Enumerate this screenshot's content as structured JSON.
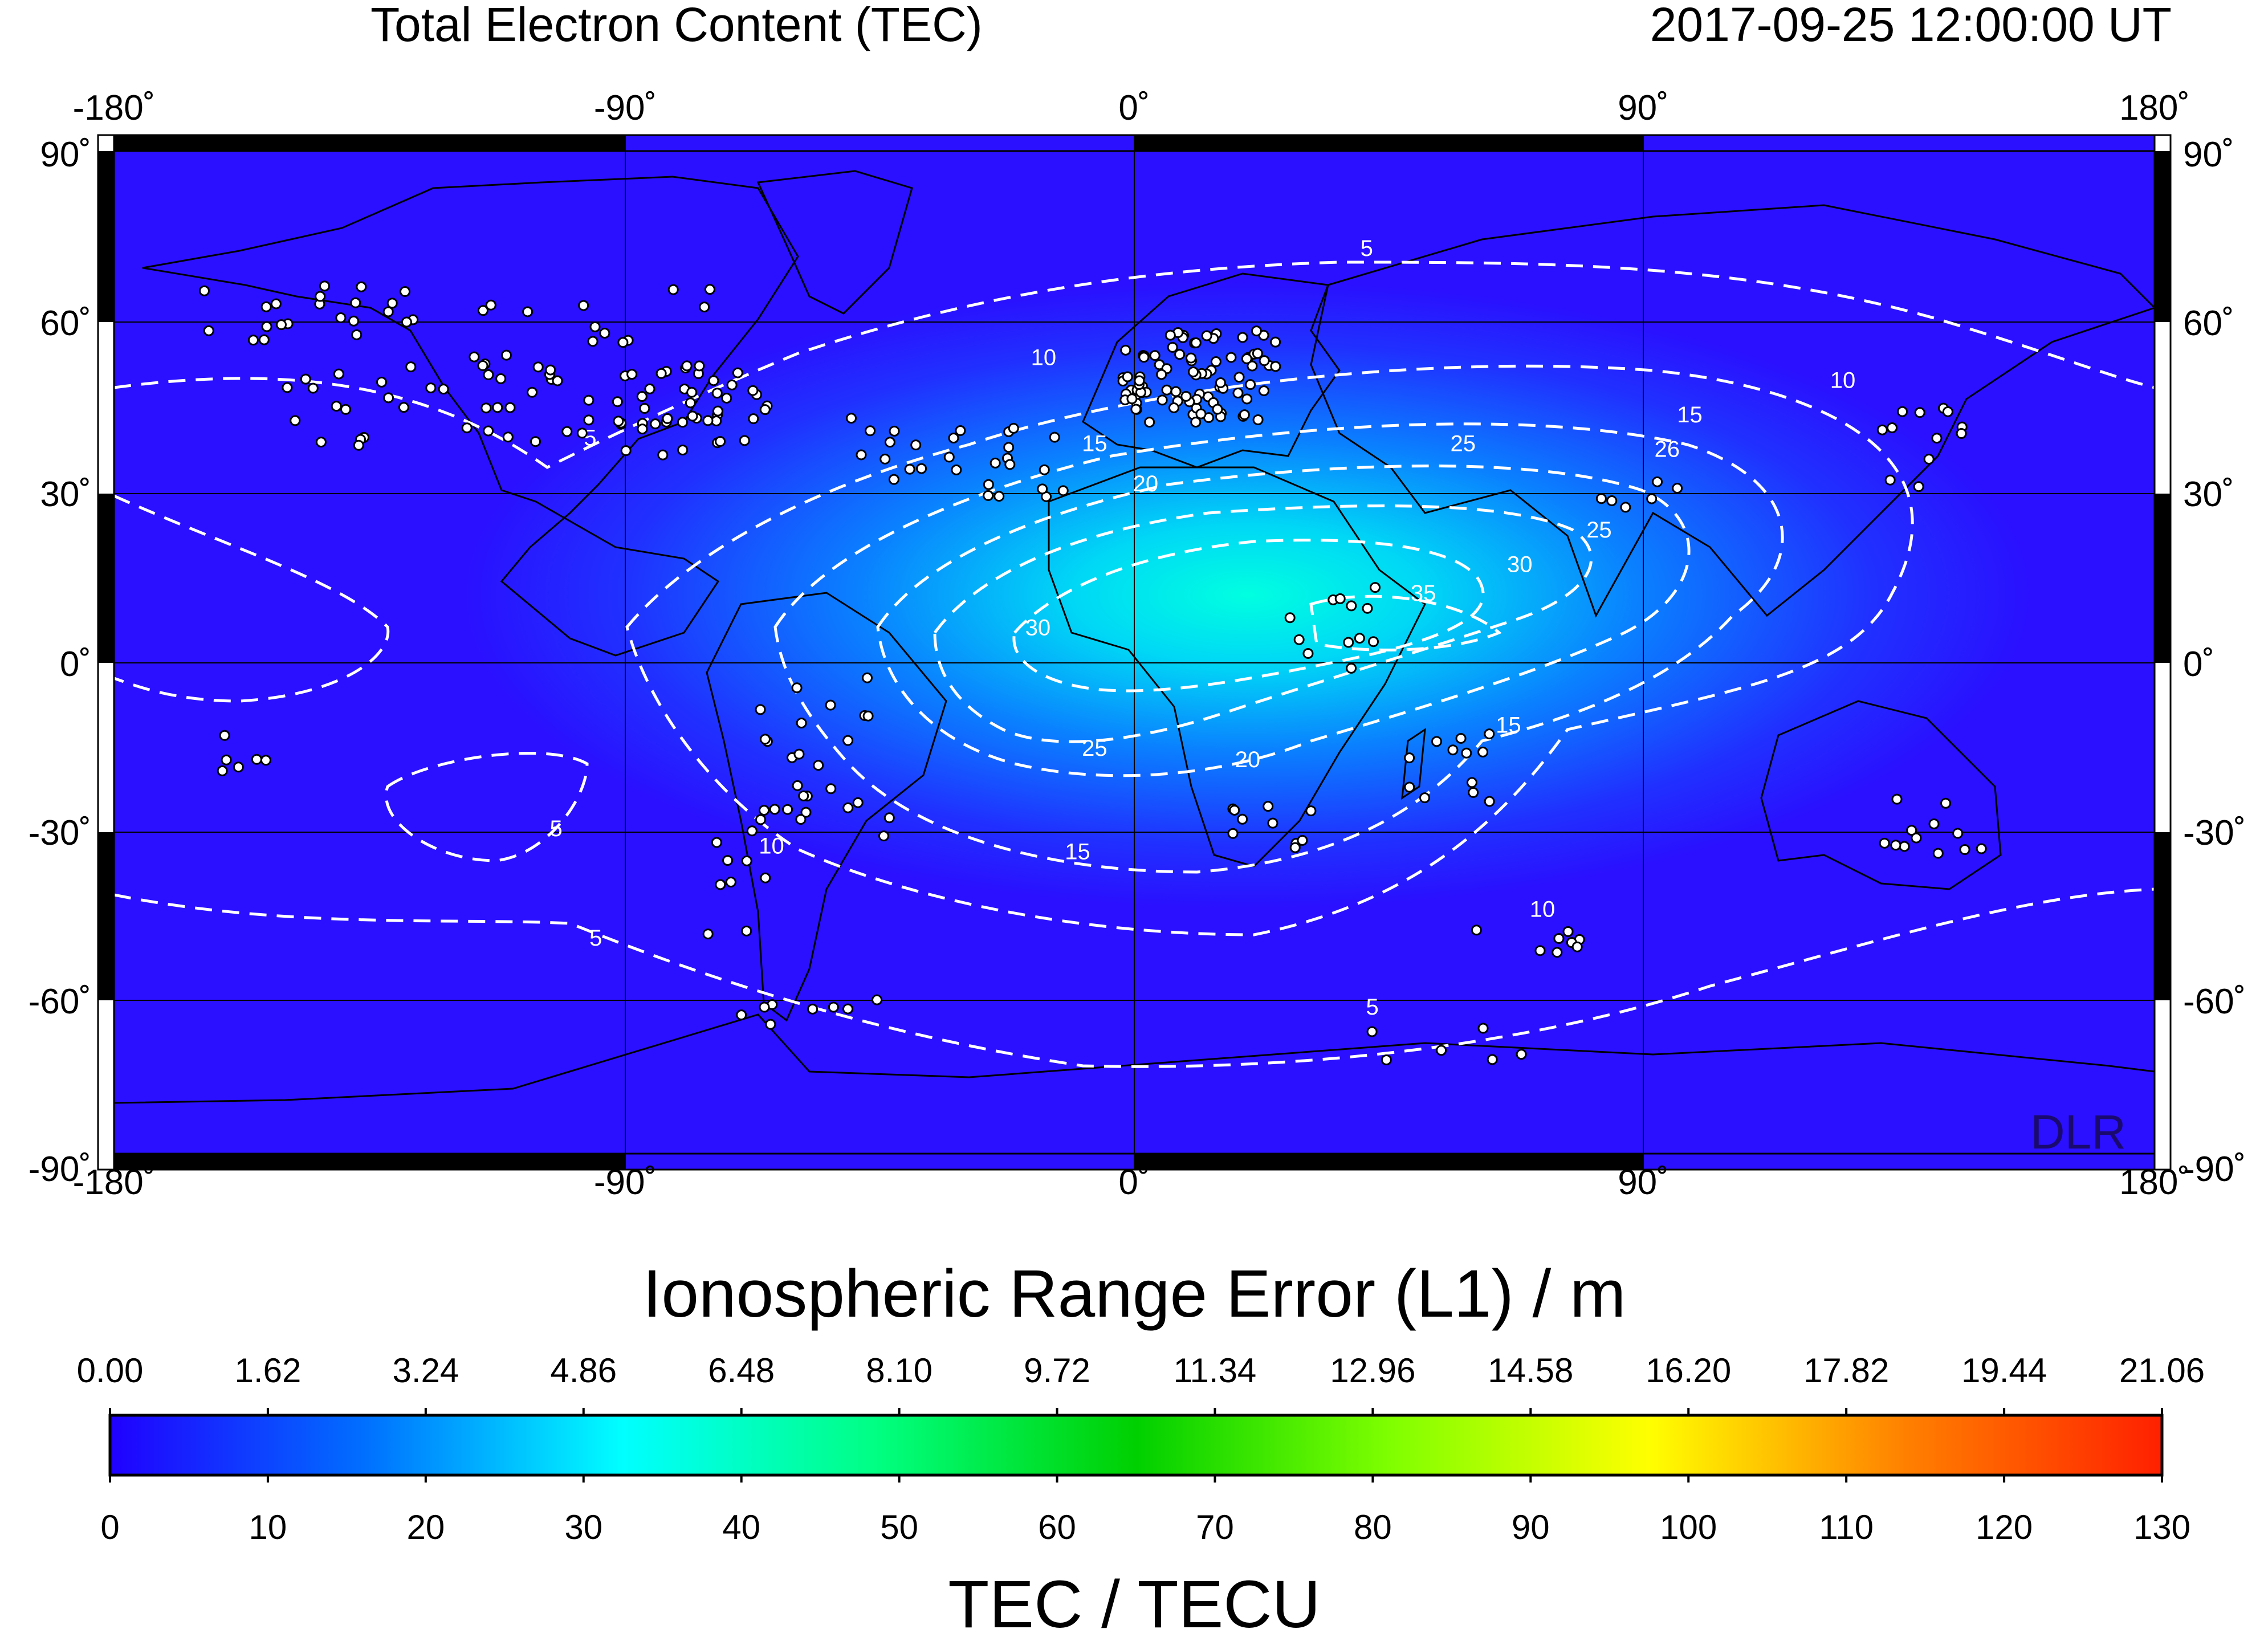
{
  "header": {
    "title": "Total Electron Content (TEC)",
    "datetime": "2017-09-25  12:00:00 UT"
  },
  "map": {
    "projection": "equirectangular",
    "lon_range": [
      -180,
      180
    ],
    "lat_range": [
      -90,
      90
    ],
    "lon_ticks": [
      "-180˚",
      "-90˚",
      "0˚",
      "90˚",
      "180˚"
    ],
    "lat_ticks": [
      "90˚",
      "60˚",
      "30˚",
      "0˚",
      "-30˚",
      "-60˚",
      "-90˚"
    ],
    "watermark": "DLR",
    "background_color": "#2a10ff",
    "peak_color": "#00ffe0",
    "contour_color": "#ffffff",
    "tec_peak": {
      "lon": 20,
      "lat": 10,
      "value": 35
    },
    "contour_labels": [
      {
        "text": "5",
        "lon": 41,
        "lat": 69
      },
      {
        "text": "5",
        "lon": -96,
        "lat": 36
      },
      {
        "text": "5",
        "lon": -102,
        "lat": -32
      },
      {
        "text": "5",
        "lon": -95,
        "lat": -51
      },
      {
        "text": "5",
        "lon": 42,
        "lat": -63
      },
      {
        "text": "10",
        "lon": -16,
        "lat": 50
      },
      {
        "text": "10",
        "lon": 125,
        "lat": 46
      },
      {
        "text": "10",
        "lon": -64,
        "lat": -35
      },
      {
        "text": "10",
        "lon": 72,
        "lat": -46
      },
      {
        "text": "15",
        "lon": -7,
        "lat": 35
      },
      {
        "text": "15",
        "lon": 98,
        "lat": 40
      },
      {
        "text": "15",
        "lon": -10,
        "lat": -36
      },
      {
        "text": "15",
        "lon": 66,
        "lat": -14
      },
      {
        "text": "20",
        "lon": 2,
        "lat": 28
      },
      {
        "text": "20",
        "lon": 20,
        "lat": -20
      },
      {
        "text": "25",
        "lon": 58,
        "lat": 35
      },
      {
        "text": "25",
        "lon": -7,
        "lat": -18
      },
      {
        "text": "25",
        "lon": 82,
        "lat": 20
      },
      {
        "text": "26",
        "lon": 94,
        "lat": 34
      },
      {
        "text": "30",
        "lon": -17,
        "lat": 3
      },
      {
        "text": "30",
        "lon": 68,
        "lat": 14
      },
      {
        "text": "35",
        "lon": 51,
        "lat": 9
      }
    ]
  },
  "range_error_bar": {
    "label": "Ionospheric Range Error (L1) / m",
    "ticks": [
      "0.00",
      "1.62",
      "3.24",
      "4.86",
      "6.48",
      "8.10",
      "9.72",
      "11.34",
      "12.96",
      "14.58",
      "16.20",
      "17.82",
      "19.44",
      "21.06"
    ]
  },
  "tec_bar": {
    "label": "TEC / TECU",
    "ticks": [
      "0",
      "10",
      "20",
      "30",
      "40",
      "50",
      "60",
      "70",
      "80",
      "90",
      "100",
      "110",
      "120",
      "130"
    ],
    "colors": [
      "#2000ff",
      "#0070ff",
      "#00ffff",
      "#00ff80",
      "#00d000",
      "#80ff00",
      "#ffff00",
      "#ff8000",
      "#ff2000"
    ]
  }
}
